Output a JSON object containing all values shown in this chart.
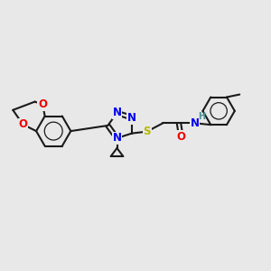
{
  "bg_color": "#e8e8e8",
  "bond_color": "#1a1a1a",
  "atom_colors": {
    "N": "#0000ee",
    "O": "#ee0000",
    "S": "#b8b800",
    "H": "#4a9090",
    "C": "#1a1a1a"
  },
  "font_size": 8.5,
  "lw": 1.5,
  "xlim": [
    0,
    12
  ],
  "ylim": [
    0,
    10
  ]
}
